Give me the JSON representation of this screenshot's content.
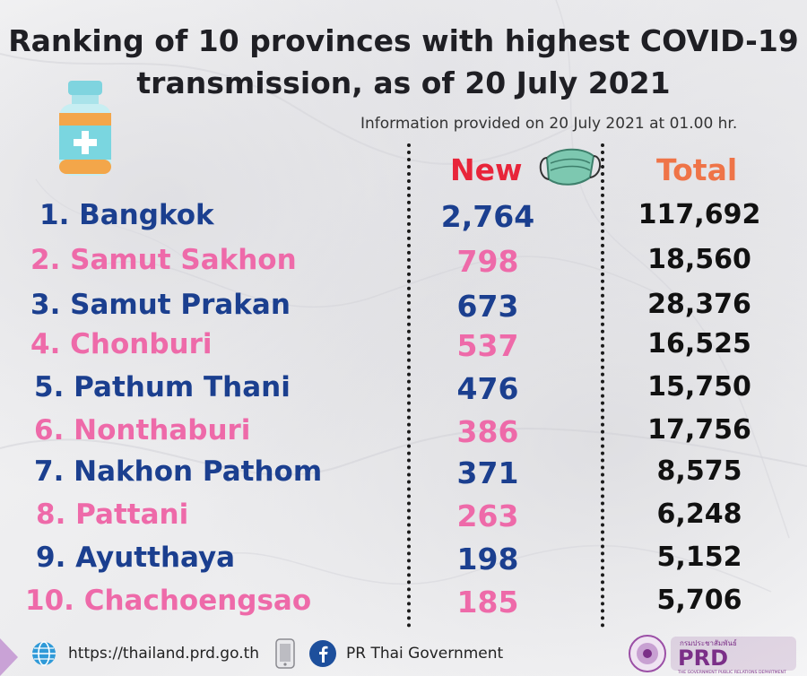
{
  "title_line1": "Ranking of 10 provinces with highest COVID-19",
  "title_line2": "transmission, as of 20 July 2021",
  "info": "Information provided on 20 July 2021 at 01.00 hr.",
  "headers": {
    "new": "New",
    "total": "Total"
  },
  "rows": [
    {
      "province": "1. Bangkok",
      "new": "2,764",
      "total": "117,692",
      "color": "#1b3f8f"
    },
    {
      "province": "2. Samut Sakhon",
      "new": "798",
      "total": "18,560",
      "color": "#ee6aa9"
    },
    {
      "province": "3. Samut Prakan",
      "new": "673",
      "total": "28,376",
      "color": "#1b3f8f"
    },
    {
      "province": "4. Chonburi",
      "new": "537",
      "total": "16,525",
      "color": "#ee6aa9"
    },
    {
      "province": "5. Pathum Thani",
      "new": "476",
      "total": "15,750",
      "color": "#1b3f8f"
    },
    {
      "province": "6. Nonthaburi",
      "new": "386",
      "total": "17,756",
      "color": "#ee6aa9"
    },
    {
      "province": "7. Nakhon Pathom",
      "new": "371",
      "total": "8,575",
      "color": "#1b3f8f"
    },
    {
      "province": "8. Pattani",
      "new": "263",
      "total": "6,248",
      "color": "#ee6aa9"
    },
    {
      "province": "9. Ayutthaya",
      "new": "198",
      "total": "5,152",
      "color": "#1b3f8f"
    },
    {
      "province": "10. Chachoengsao",
      "new": "185",
      "total": "5,706",
      "color": "#ee6aa9"
    }
  ],
  "footer": {
    "website": "https://thailand.prd.go.th",
    "facebook": "PR Thai Government",
    "logo_text": "PRD",
    "logo_subtext": "กรมประชาสัมพันธ์",
    "logo_tagline": "THE GOVERNMENT PUBLIC RELATIONS DEPARTMENT"
  },
  "colors": {
    "new_header": "#e8253a",
    "total_header": "#ef7448",
    "blue_rows": "#1b3f8f",
    "pink_rows": "#ee6aa9"
  },
  "icons": [
    "medicine-bottle-icon",
    "face-mask-icon",
    "globe-icon",
    "mobile-icon",
    "facebook-icon",
    "prd-logo"
  ]
}
